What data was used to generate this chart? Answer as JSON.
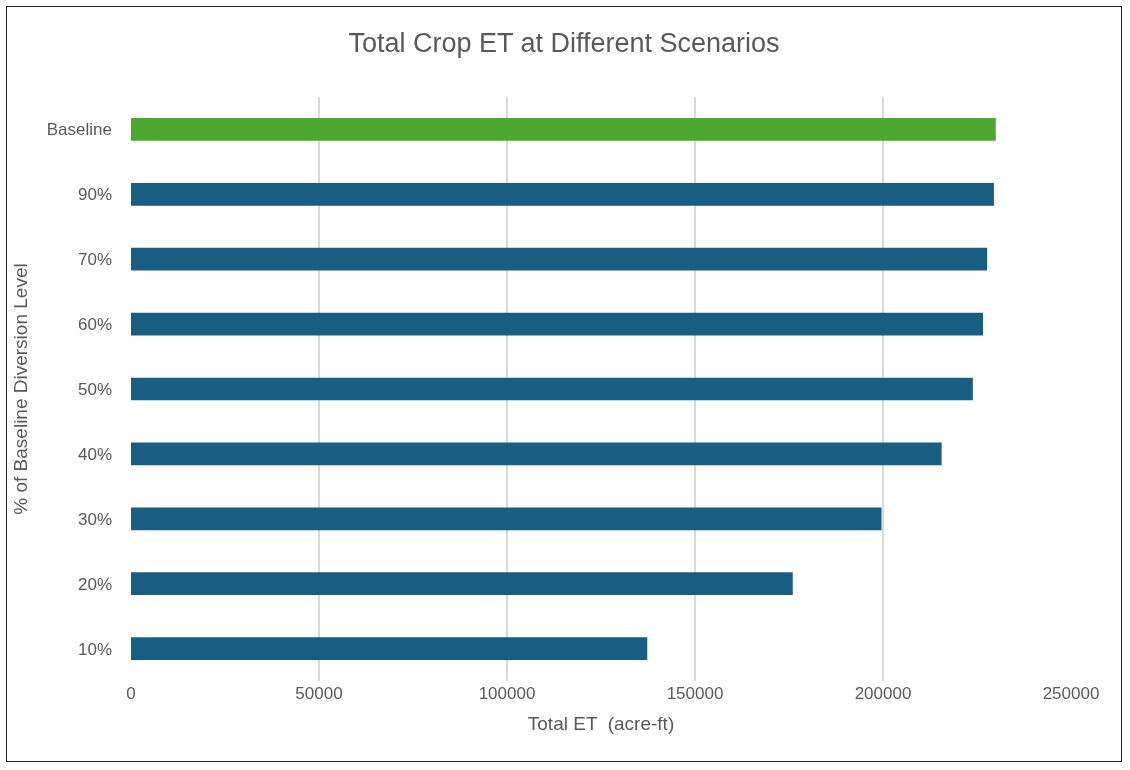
{
  "chart_data": {
    "type": "bar",
    "orientation": "horizontal",
    "title": "Total Crop ET at Different Scenarios",
    "xlabel": "Total ET  (acre-ft)",
    "ylabel": "% of Baseline Diversion Level",
    "categories": [
      "Baseline",
      "90%",
      "70%",
      "60%",
      "50%",
      "40%",
      "30%",
      "20%",
      "10%"
    ],
    "values": [
      230000,
      229500,
      227700,
      226600,
      223900,
      215600,
      199600,
      176000,
      137300
    ],
    "colors": [
      "#4ea72e",
      "#175e82",
      "#175e82",
      "#175e82",
      "#175e82",
      "#175e82",
      "#175e82",
      "#175e82",
      "#175e82"
    ],
    "xlim": [
      0,
      250000
    ],
    "xticks": [
      0,
      50000,
      100000,
      150000,
      200000,
      250000
    ],
    "grid": "x"
  }
}
